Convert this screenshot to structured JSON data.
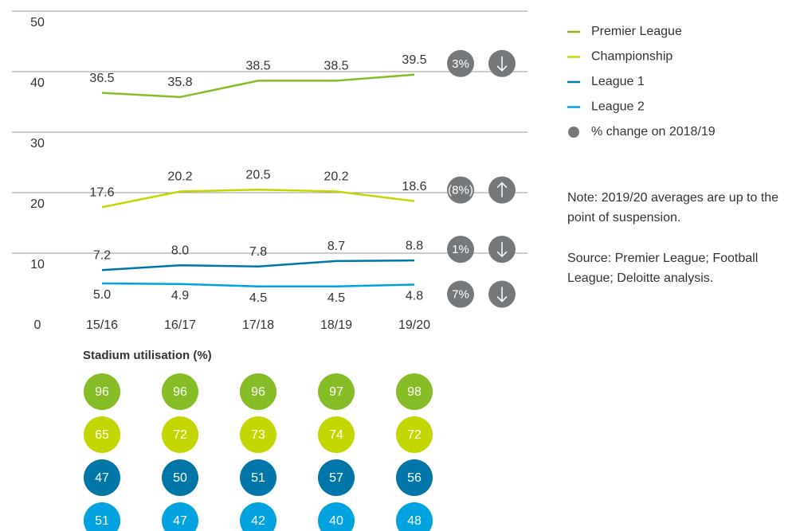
{
  "chart_data": {
    "type": "line",
    "categories": [
      "15/16",
      "16/17",
      "17/18",
      "18/19",
      "19/20"
    ],
    "ylim": [
      0,
      50
    ],
    "yticks": [
      0,
      10,
      20,
      30,
      40,
      50
    ],
    "grid": true,
    "legend": "top-right",
    "series": [
      {
        "name": "Premier League",
        "color": "#86bc25",
        "values": [
          36.5,
          35.8,
          38.5,
          38.5,
          39.5
        ],
        "value_labels": [
          "36.5",
          "35.8",
          "38.5",
          "38.5",
          "39.5"
        ],
        "change": {
          "value": 3,
          "label": "3%"
        },
        "utilisation": [
          96,
          96,
          96,
          97,
          98
        ]
      },
      {
        "name": "Championship",
        "color": "#c4d600",
        "values": [
          17.6,
          20.2,
          20.5,
          20.2,
          18.6
        ],
        "value_labels": [
          "17.6",
          "20.2",
          "20.5",
          "20.2",
          "18.6"
        ],
        "change": {
          "value": -8,
          "label": "(8%)"
        },
        "utilisation": [
          65,
          72,
          73,
          74,
          72
        ]
      },
      {
        "name": "League 1",
        "color": "#0076a8",
        "values": [
          7.2,
          8.0,
          7.8,
          8.7,
          8.8
        ],
        "value_labels": [
          "7.2",
          "8.0",
          "7.8",
          "8.7",
          "8.8"
        ],
        "change": {
          "value": 1,
          "label": "1%"
        },
        "utilisation": [
          47,
          50,
          51,
          57,
          56
        ]
      },
      {
        "name": "League 2",
        "color": "#00a3e0",
        "values": [
          5.0,
          4.9,
          4.5,
          4.5,
          4.8
        ],
        "value_labels": [
          "5.0",
          "4.9",
          "4.5",
          "4.5",
          "4.8"
        ],
        "change": {
          "value": 7,
          "label": "7%"
        },
        "utilisation": [
          51,
          47,
          42,
          40,
          48
        ]
      }
    ],
    "change_legend": "% change on 2018/19",
    "change_color": "#75787b",
    "utilisation_title": "Stadium utilisation (%)",
    "note": "Note: 2019/20 averages are up to the point of suspension.",
    "source": "Source: Premier League; Football League; Deloitte analysis."
  }
}
